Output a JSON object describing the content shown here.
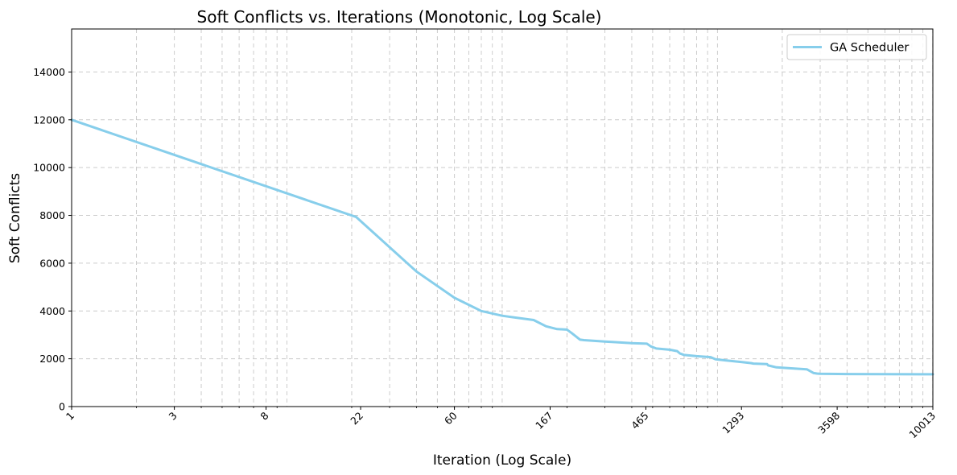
{
  "chart_data": {
    "type": "line",
    "title": "Soft Conflicts vs. Iterations (Monotonic, Log Scale)",
    "xlabel": "Iteration (Log Scale)",
    "ylabel": "Soft Conflicts",
    "x_scale": "log",
    "xlim": [
      1,
      10013
    ],
    "ylim": [
      0,
      15800
    ],
    "x_ticks": [
      1,
      3,
      8,
      22,
      60,
      167,
      465,
      1293,
      3598,
      10013
    ],
    "x_tick_labels": [
      "1",
      "3",
      "8",
      "22",
      "60",
      "167",
      "465",
      "1293",
      "3598",
      "10013"
    ],
    "y_ticks": [
      0,
      2000,
      4000,
      6000,
      8000,
      10000,
      12000,
      14000
    ],
    "y_tick_labels": [
      "0",
      "2000",
      "4000",
      "6000",
      "8000",
      "10000",
      "12000",
      "14000"
    ],
    "grid": true,
    "legend_position": "top-right",
    "line_color": "#87CEEB",
    "series": [
      {
        "name": "GA Scheduler",
        "color": "#87CEEB",
        "x": [
          1,
          21,
          40,
          60,
          80,
          100,
          140,
          160,
          180,
          200,
          210,
          230,
          240,
          300,
          330,
          400,
          470,
          490,
          520,
          600,
          650,
          670,
          700,
          800,
          930,
          980,
          1100,
          1300,
          1430,
          1470,
          1700,
          1720,
          1800,
          1880,
          2200,
          2600,
          2800,
          2900,
          3000,
          4000,
          10013
        ],
        "y": [
          12000,
          7930,
          5650,
          4550,
          4000,
          3800,
          3620,
          3360,
          3240,
          3220,
          3080,
          2800,
          2780,
          2720,
          2700,
          2650,
          2630,
          2520,
          2430,
          2380,
          2320,
          2220,
          2160,
          2110,
          2070,
          1980,
          1930,
          1860,
          1820,
          1800,
          1780,
          1720,
          1680,
          1640,
          1600,
          1560,
          1400,
          1380,
          1370,
          1360,
          1350
        ]
      }
    ]
  }
}
